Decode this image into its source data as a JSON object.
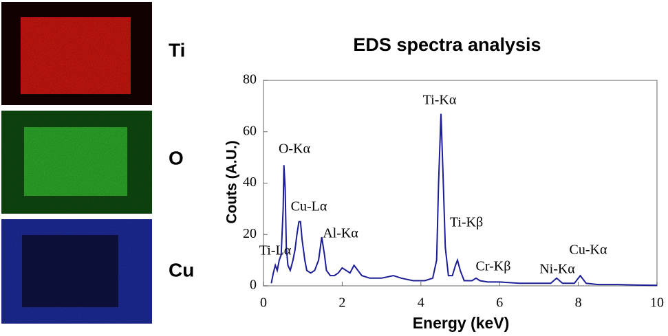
{
  "maps": [
    {
      "label": "Ti"
    },
    {
      "label": "O"
    },
    {
      "label": "Cu"
    }
  ],
  "chart_data": {
    "type": "line",
    "title": "EDS spectra analysis",
    "x_label": "Energy (keV)",
    "y_label": "Couts (A.U.)",
    "annotations": [
      "Ti-Lα",
      "O-Kα",
      "Cu-Lα",
      "Al-Kα",
      "Ti-Kα",
      "Ti-Kβ",
      "Cr-Kβ",
      "Ni-Kα",
      "Cu-Kα"
    ],
    "x": [
      0.2,
      0.25,
      0.3,
      0.35,
      0.4,
      0.45,
      0.5,
      0.52,
      0.55,
      0.58,
      0.62,
      0.68,
      0.75,
      0.8,
      0.85,
      0.9,
      0.94,
      0.98,
      1.05,
      1.1,
      1.2,
      1.3,
      1.4,
      1.48,
      1.55,
      1.6,
      1.7,
      1.8,
      1.9,
      2.0,
      2.1,
      2.2,
      2.3,
      2.4,
      2.5,
      2.7,
      3.0,
      3.3,
      3.5,
      3.8,
      4.1,
      4.3,
      4.4,
      4.45,
      4.51,
      4.56,
      4.62,
      4.7,
      4.8,
      4.88,
      4.93,
      5.0,
      5.1,
      5.3,
      5.4,
      5.5,
      5.7,
      6.0,
      6.5,
      7.0,
      7.3,
      7.45,
      7.6,
      7.9,
      8.05,
      8.2,
      8.5,
      9.0,
      9.5,
      10
    ],
    "series": [
      {
        "color": "#1c1c96",
        "values": [
          1,
          5,
          8,
          6,
          10,
          12,
          30,
          47,
          38,
          15,
          8,
          6,
          10,
          14,
          20,
          25,
          25,
          18,
          10,
          6,
          5,
          6,
          10,
          19,
          12,
          6,
          4,
          4,
          5,
          7,
          6,
          5,
          8,
          6,
          4,
          3,
          3,
          4,
          3,
          2,
          2,
          3,
          10,
          40,
          67,
          45,
          15,
          4,
          4,
          8,
          10,
          6,
          2,
          2,
          3,
          2,
          1.5,
          1.5,
          1,
          1,
          1,
          3,
          1,
          1,
          4,
          1,
          0.5,
          0.5,
          0.3,
          0.2
        ]
      }
    ],
    "xlim": [
      0,
      10
    ],
    "ylim": [
      0,
      80
    ],
    "xticks": [
      0,
      2,
      4,
      6,
      8,
      10
    ],
    "yticks": [
      0,
      20,
      40,
      60,
      80
    ]
  }
}
